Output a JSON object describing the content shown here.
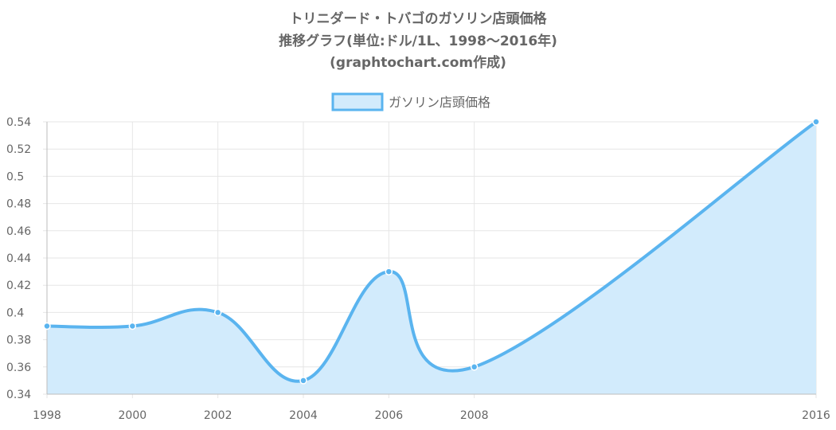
{
  "chart_data": {
    "type": "area",
    "title_lines": [
      "トリニダード・トバゴのガソリン店頭価格",
      "推移グラフ(単位:ドル/1L、1998～2016年)",
      "(graphtochart.com作成)"
    ],
    "legend_position": "top",
    "grid": true,
    "x": [
      1998,
      2000,
      2002,
      2004,
      2006,
      2008,
      2016
    ],
    "xlim": [
      1998,
      2016
    ],
    "x_ticks": [
      "1998",
      "2000",
      "2002",
      "2004",
      "2006",
      "2008",
      "2016"
    ],
    "ylim": [
      0.34,
      0.54
    ],
    "y_ticks": [
      "0.54",
      "0.52",
      "0.5",
      "0.48",
      "0.46",
      "0.44",
      "0.42",
      "0.4",
      "0.38",
      "0.36",
      "0.34"
    ],
    "series": [
      {
        "name": "ガソリン店頭価格",
        "values": [
          0.39,
          0.39,
          0.4,
          0.35,
          0.43,
          0.36,
          0.54
        ],
        "color": "#5ab4ef",
        "fill": "#d2ebfc"
      }
    ]
  }
}
